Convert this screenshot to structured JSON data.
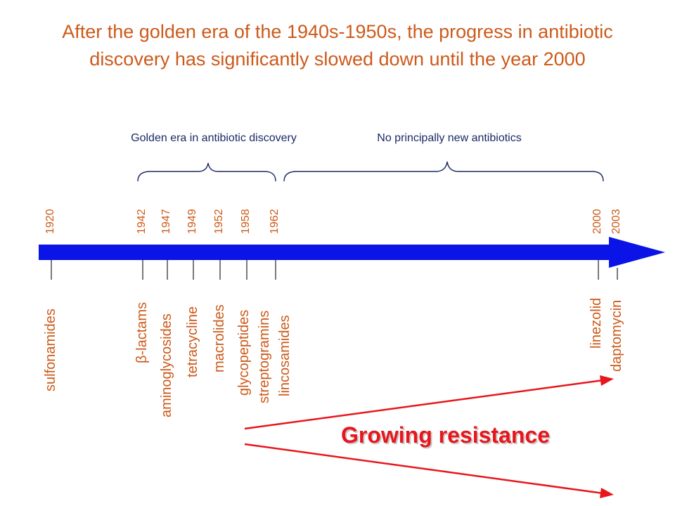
{
  "title": {
    "line1": "After the golden era of the 1940s-1950s, the progress in antibiotic",
    "line2": "discovery has significantly slowed down until the year 2000"
  },
  "eras": {
    "golden": "Golden era in antibiotic discovery",
    "none_new": "No principally new antibiotics"
  },
  "years": [
    "1920",
    "1942",
    "1947",
    "1949",
    "1952",
    "1958",
    "1962",
    "2000",
    "2003"
  ],
  "drugs": {
    "sulfonamides": "sulfonamides",
    "beta_lactams": "β-lactams",
    "aminoglycosides": "aminoglycosides",
    "tetracycline": "tetracycline",
    "macrolides": "macrolides",
    "glycopeptides": "glycopeptides",
    "streptogramins": "streptogramins",
    "lincosamides": "lincosamides",
    "linezolid": "linezolid",
    "daptomycin": "daptomycin"
  },
  "resistance": {
    "label": "Growing resistance"
  },
  "colors": {
    "timeline": "#0a14e6",
    "title": "#cc5a1a",
    "era_text": "#1a2a66",
    "resistance": "#e8161c",
    "brace": "#1a2a66"
  }
}
